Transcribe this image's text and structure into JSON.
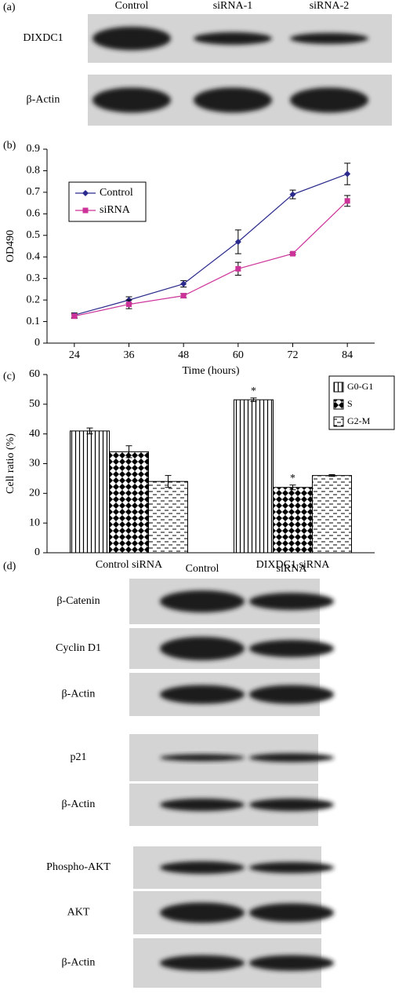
{
  "panel_labels": [
    "(a)",
    "(b)",
    "(c)",
    "(d)"
  ],
  "blot_a": {
    "lanes": [
      "Control",
      "siRNA-1",
      "siRNA-2"
    ],
    "rows": [
      "DIXDC1",
      "β-Actin"
    ]
  },
  "blot_d": {
    "lanes": [
      "Control",
      "siRNA"
    ],
    "rows": [
      "β-Catenin",
      "Cyclin D1",
      "β-Actin",
      "p21",
      "β-Actin",
      "Phospho-AKT",
      "AKT",
      "β-Actin"
    ]
  },
  "chart_data": [
    {
      "type": "line",
      "xlabel": "Time (hours)",
      "ylabel": "OD490",
      "categories": [
        24,
        36,
        48,
        60,
        72,
        84
      ],
      "ylim": [
        0,
        0.9
      ],
      "yticks": [
        0,
        0.1,
        0.2,
        0.3,
        0.4,
        0.5,
        0.6,
        0.7,
        0.8,
        0.9
      ],
      "legend": "upper-left",
      "series": [
        {
          "name": "Control",
          "color": "#2a2a8c",
          "marker": "diamond",
          "values": [
            0.13,
            0.2,
            0.275,
            0.47,
            0.69,
            0.785
          ],
          "errors": [
            0.01,
            0.015,
            0.015,
            0.055,
            0.02,
            0.05
          ]
        },
        {
          "name": "siRNA",
          "color": "#cc3399",
          "marker": "square",
          "values": [
            0.125,
            0.18,
            0.22,
            0.345,
            0.415,
            0.66
          ],
          "errors": [
            0.01,
            0.02,
            0.01,
            0.03,
            0.005,
            0.025
          ]
        }
      ]
    },
    {
      "type": "bar",
      "ylabel": "Cell ratio (%)",
      "categories": [
        "Control siRNA",
        "DIXDC1 siRNA"
      ],
      "ylim": [
        0,
        60
      ],
      "yticks": [
        0,
        10,
        20,
        30,
        40,
        50,
        60
      ],
      "legend": "upper-right",
      "series": [
        {
          "name": "G0-G1",
          "color": "#000000",
          "pattern": "vertical",
          "values": [
            41,
            51.5
          ],
          "errors": [
            1,
            0.6
          ],
          "labels": [
            null,
            "*"
          ]
        },
        {
          "name": "S",
          "color": "#000000",
          "pattern": "checker",
          "values": [
            34,
            22
          ],
          "errors": [
            2,
            0.8
          ],
          "labels": [
            null,
            "*"
          ]
        },
        {
          "name": "G2-M",
          "color": "#000000",
          "pattern": "dashes",
          "values": [
            24,
            26
          ],
          "errors": [
            2,
            0.3
          ],
          "labels": [
            null,
            null
          ]
        }
      ]
    }
  ]
}
